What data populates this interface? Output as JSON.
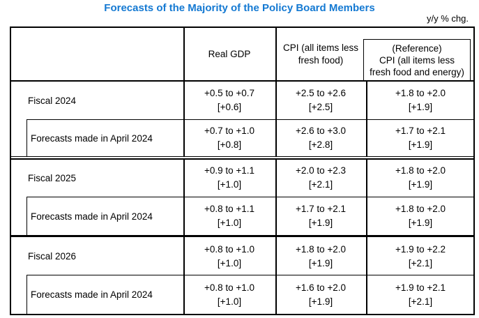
{
  "title": "Forecasts of the Majority of the Policy Board Members",
  "unit_note": "y/y % chg.",
  "colors": {
    "title_blue": "#1479d2",
    "border": "#000000",
    "background": "#ffffff"
  },
  "header": {
    "real_gdp": "Real GDP",
    "cpi_lines": [
      "CPI (all items less",
      "fresh food)"
    ],
    "reference_lines": [
      "(Reference)",
      "CPI (all items less",
      "fresh food and energy)"
    ]
  },
  "rows": [
    {
      "label": "Fiscal 2024",
      "real_gdp": {
        "range": "+0.5 to +0.7",
        "median": "[+0.6]"
      },
      "cpi": {
        "range": "+2.5 to +2.6",
        "median": "[+2.5]"
      },
      "reference": {
        "range": "+1.8 to +2.0",
        "median": "[+1.9]"
      }
    },
    {
      "label": "Forecasts made in April 2024",
      "real_gdp": {
        "range": "+0.7 to +1.0",
        "median": "[+0.8]"
      },
      "cpi": {
        "range": "+2.6 to +3.0",
        "median": "[+2.8]"
      },
      "reference": {
        "range": "+1.7 to +2.1",
        "median": "[+1.9]"
      }
    },
    {
      "label": "Fiscal 2025",
      "real_gdp": {
        "range": "+0.9 to +1.1",
        "median": "[+1.0]"
      },
      "cpi": {
        "range": "+2.0 to +2.3",
        "median": "[+2.1]"
      },
      "reference": {
        "range": "+1.8 to +2.0",
        "median": "[+1.9]"
      }
    },
    {
      "label": "Forecasts made in April 2024",
      "real_gdp": {
        "range": "+0.8 to +1.1",
        "median": "[+1.0]"
      },
      "cpi": {
        "range": "+1.7 to +2.1",
        "median": "[+1.9]"
      },
      "reference": {
        "range": "+1.8 to +2.0",
        "median": "[+1.9]"
      }
    },
    {
      "label": "Fiscal 2026",
      "real_gdp": {
        "range": "+0.8 to +1.0",
        "median": "[+1.0]"
      },
      "cpi": {
        "range": "+1.8 to +2.0",
        "median": "[+1.9]"
      },
      "reference": {
        "range": "+1.9 to +2.2",
        "median": "[+2.1]"
      }
    },
    {
      "label": "Forecasts made in April 2024",
      "real_gdp": {
        "range": "+0.8 to +1.0",
        "median": "[+1.0]"
      },
      "cpi": {
        "range": "+1.6 to +2.0",
        "median": "[+1.9]"
      },
      "reference": {
        "range": "+1.9 to +2.1",
        "median": "[+2.1]"
      }
    }
  ]
}
